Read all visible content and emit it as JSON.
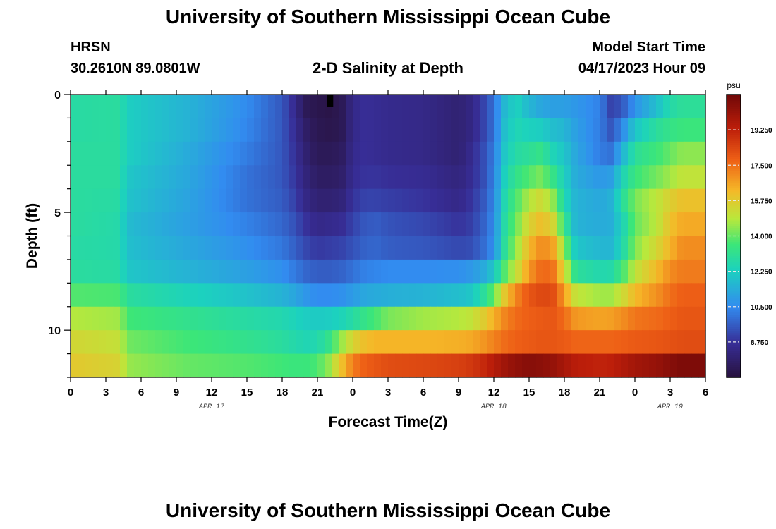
{
  "page": {
    "title": "University of Southern Mississippi Ocean Cube",
    "station": "HRSN",
    "coords": "30.2610N  89.0801W",
    "plot_title": "2-D Salinity at Depth",
    "model_label": "Model Start Time",
    "model_time": "04/17/2023 Hour 09",
    "footer_title": "University of Southern Mississippi Ocean Cube"
  },
  "chart_data": {
    "type": "heatmap",
    "title": "2-D Salinity at Depth",
    "xlabel": "Forecast Time(Z)",
    "ylabel": "Depth (ft)",
    "x_tick_labels": [
      "0",
      "3",
      "6",
      "9",
      "12",
      "15",
      "18",
      "21",
      "0",
      "3",
      "6",
      "9",
      "12",
      "15",
      "18",
      "21",
      "0",
      "3",
      "6"
    ],
    "date_labels": [
      {
        "label": "APR 17",
        "hour": 12
      },
      {
        "label": "APR 18",
        "hour": 36
      },
      {
        "label": "APR 19",
        "hour": 51
      }
    ],
    "xlim_hours": [
      0,
      54
    ],
    "y_tick_labels": [
      "0",
      "5",
      "10"
    ],
    "ylim_ft": [
      0,
      12
    ],
    "colorbar": {
      "unit": "psu",
      "ticks": [
        "19.250",
        "17.500",
        "15.750",
        "14.000",
        "12.250",
        "10.500",
        "8.750"
      ],
      "tick_values": [
        19.25,
        17.5,
        15.75,
        14.0,
        12.25,
        10.5,
        8.75
      ],
      "range": [
        7.0,
        21.0
      ]
    },
    "depth_levels": 12,
    "time_keys": [
      0,
      4,
      5,
      10,
      15,
      18,
      19,
      20,
      21,
      22,
      23,
      24,
      25,
      26,
      27,
      30,
      33,
      34,
      35,
      36,
      37,
      38,
      39,
      40,
      41,
      42,
      43,
      45,
      46,
      47,
      48,
      50,
      51,
      52,
      54
    ],
    "salinity_keys": [
      [
        12.8,
        12.9,
        12.2,
        11.5,
        10.5,
        9.5,
        8.6,
        7.5,
        7.3,
        7.2,
        7.4,
        8.4,
        8.7,
        8.6,
        8.5,
        8.4,
        8.0,
        8.3,
        9.0,
        10.0,
        11.8,
        12.3,
        11.6,
        11.2,
        11.0,
        11.0,
        10.8,
        10.3,
        9.0,
        9.6,
        10.7,
        11.9,
        12.7,
        13.0,
        13.0
      ],
      [
        12.8,
        12.9,
        12.2,
        11.5,
        10.4,
        9.5,
        8.7,
        7.8,
        7.4,
        7.3,
        7.4,
        8.4,
        8.7,
        8.6,
        8.5,
        8.4,
        8.0,
        8.3,
        9.0,
        10.0,
        12.0,
        12.5,
        12.3,
        12.2,
        11.8,
        11.6,
        11.0,
        10.2,
        9.4,
        10.6,
        12.0,
        13.0,
        13.3,
        13.5,
        13.5
      ],
      [
        12.9,
        12.9,
        12.2,
        11.3,
        10.2,
        9.5,
        8.8,
        8.0,
        7.5,
        7.5,
        7.6,
        8.5,
        8.7,
        8.6,
        8.5,
        8.4,
        8.0,
        8.5,
        9.2,
        10.2,
        12.2,
        12.8,
        13.0,
        13.3,
        12.5,
        12.0,
        11.2,
        10.2,
        10.0,
        11.6,
        13.0,
        13.6,
        14.0,
        14.4,
        14.4
      ],
      [
        12.9,
        12.9,
        12.0,
        11.2,
        10.0,
        9.5,
        8.9,
        8.2,
        7.7,
        7.7,
        7.8,
        8.6,
        8.8,
        8.8,
        8.7,
        8.6,
        8.2,
        8.6,
        9.2,
        10.3,
        12.5,
        13.3,
        13.8,
        14.2,
        13.4,
        12.3,
        11.3,
        10.8,
        11.0,
        12.5,
        13.5,
        14.2,
        14.6,
        15.0,
        15.0
      ],
      [
        12.9,
        12.8,
        11.9,
        11.1,
        10.0,
        9.6,
        9.1,
        8.4,
        8.0,
        8.0,
        8.1,
        8.8,
        9.1,
        9.1,
        9.0,
        8.8,
        8.4,
        8.8,
        9.4,
        10.4,
        12.8,
        13.8,
        14.8,
        15.3,
        14.6,
        12.6,
        11.5,
        11.2,
        11.5,
        13.0,
        14.2,
        15.0,
        15.6,
        16.0,
        16.0
      ],
      [
        12.9,
        12.7,
        11.7,
        11.0,
        10.3,
        9.8,
        9.4,
        8.8,
        8.4,
        8.5,
        8.6,
        9.1,
        9.5,
        9.6,
        9.4,
        9.2,
        8.8,
        9.0,
        9.6,
        10.5,
        13.0,
        14.2,
        15.5,
        16.1,
        15.6,
        13.4,
        11.5,
        11.3,
        11.4,
        12.5,
        14.0,
        15.0,
        16.0,
        16.5,
        16.5
      ],
      [
        12.8,
        12.7,
        11.8,
        11.2,
        10.6,
        10.1,
        9.7,
        9.2,
        8.9,
        9.0,
        9.1,
        9.4,
        9.7,
        9.8,
        9.6,
        9.5,
        9.2,
        9.3,
        9.8,
        10.6,
        13.2,
        14.6,
        16.2,
        17.0,
        16.8,
        14.5,
        12.0,
        11.6,
        11.6,
        12.7,
        14.3,
        15.5,
        16.3,
        17.0,
        17.0
      ],
      [
        12.9,
        12.8,
        12.0,
        11.5,
        11.0,
        10.6,
        10.2,
        9.8,
        9.6,
        9.6,
        9.7,
        10.0,
        10.3,
        10.4,
        10.5,
        10.5,
        10.6,
        10.8,
        11.2,
        12.0,
        14.0,
        15.2,
        16.8,
        17.6,
        17.6,
        15.5,
        13.0,
        12.6,
        12.7,
        13.7,
        15.0,
        16.3,
        17.0,
        17.3,
        17.3
      ],
      [
        13.8,
        13.7,
        12.9,
        12.4,
        11.9,
        11.5,
        11.2,
        10.8,
        10.5,
        10.5,
        10.6,
        10.9,
        11.2,
        11.3,
        11.4,
        11.5,
        11.8,
        12.0,
        12.8,
        14.0,
        16.0,
        17.2,
        18.0,
        18.3,
        18.3,
        16.8,
        15.0,
        14.6,
        14.6,
        15.3,
        16.2,
        17.0,
        17.5,
        17.8,
        17.8
      ],
      [
        14.8,
        14.6,
        13.6,
        13.2,
        12.8,
        12.6,
        12.4,
        12.2,
        12.1,
        12.2,
        12.4,
        12.8,
        13.3,
        13.7,
        14.2,
        14.6,
        14.8,
        15.0,
        15.6,
        16.4,
        17.2,
        17.6,
        17.8,
        17.9,
        18.0,
        17.6,
        16.8,
        16.6,
        16.7,
        17.0,
        17.4,
        17.6,
        17.8,
        18.0,
        18.0
      ],
      [
        15.4,
        15.1,
        14.1,
        13.6,
        13.2,
        12.9,
        12.7,
        12.5,
        12.6,
        13.3,
        14.5,
        15.5,
        16.1,
        16.3,
        16.3,
        16.3,
        16.4,
        16.5,
        16.8,
        17.2,
        17.6,
        17.8,
        17.9,
        18.0,
        18.0,
        17.9,
        17.7,
        17.7,
        17.7,
        17.8,
        17.9,
        18.0,
        18.1,
        18.2,
        18.2
      ],
      [
        15.8,
        15.5,
        14.5,
        14.0,
        13.8,
        13.6,
        13.5,
        13.5,
        13.7,
        14.5,
        16.0,
        17.3,
        17.8,
        18.0,
        18.2,
        18.3,
        18.5,
        18.7,
        19.0,
        19.5,
        20.0,
        20.3,
        20.5,
        20.4,
        20.2,
        19.8,
        19.4,
        19.2,
        19.3,
        19.6,
        19.9,
        20.2,
        20.5,
        20.7,
        20.7
      ]
    ]
  }
}
